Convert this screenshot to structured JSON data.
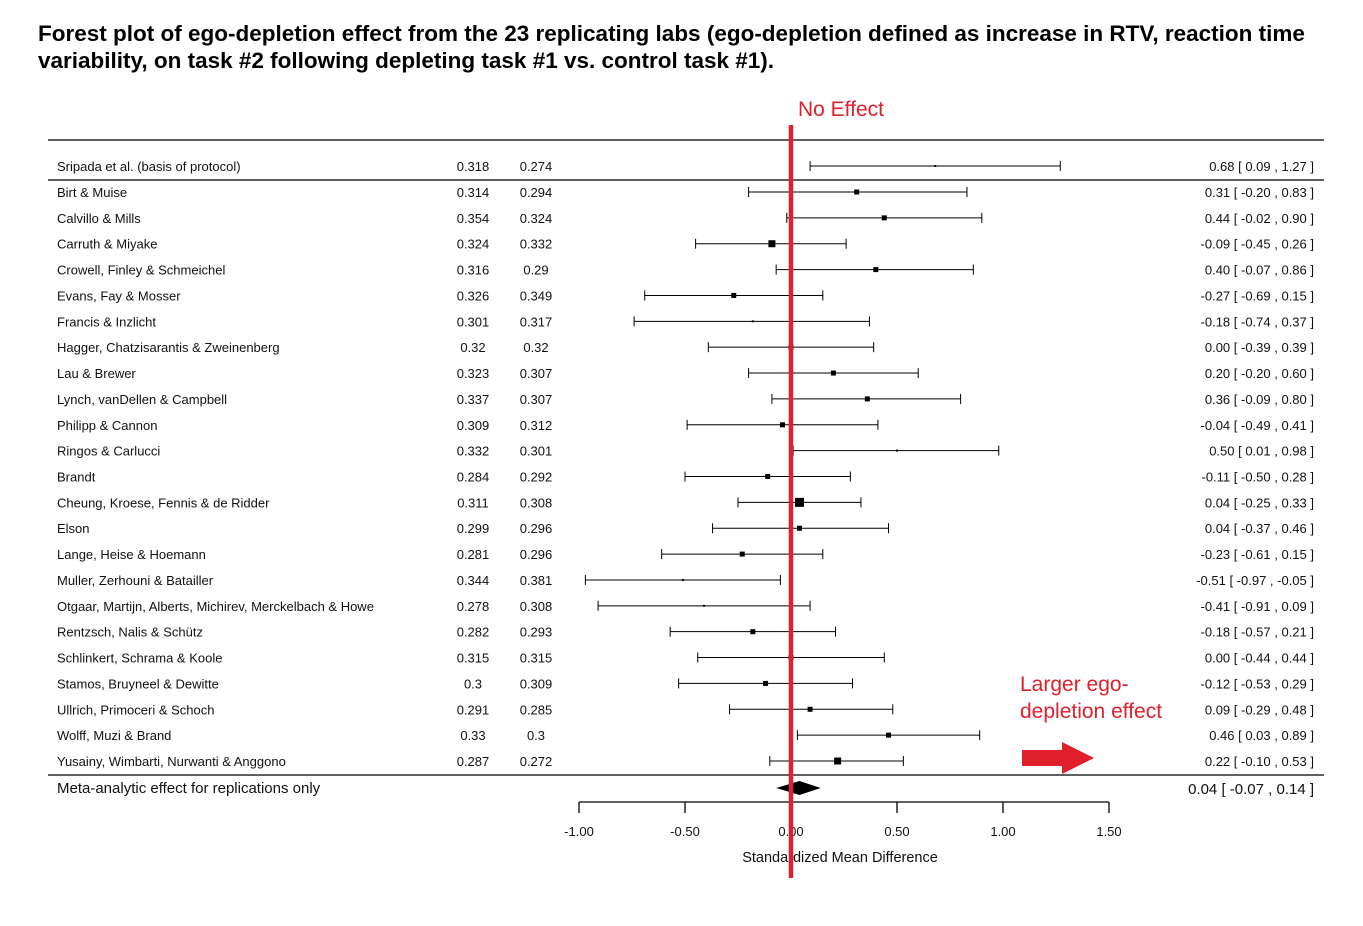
{
  "title_lines": [
    "Forest plot of ego-depletion effect from the 23 replicating labs (ego-depletion defined as increase in RTV, reaction time",
    "variability, on task #2 following depleting task #1 vs. control task #1)."
  ],
  "annotations": {
    "no_effect": "No Effect",
    "larger_effect_lines": [
      "Larger  ego-",
      "depletion effect"
    ]
  },
  "colors": {
    "accent_red": "#e0202a",
    "ink": "#000000"
  },
  "chart_data": {
    "type": "forest",
    "xlabel": "Standardized Mean Difference",
    "xlim": [
      -1.0,
      1.5
    ],
    "xticks": [
      -1.0,
      -0.5,
      0.0,
      0.5,
      1.0,
      1.5
    ],
    "xtick_labels": [
      "-1.00",
      "-0.50",
      "0.00",
      "0.50",
      "1.00",
      "1.50"
    ],
    "reference_line": 0.0,
    "original_study": {
      "label": "Sripada et al. (basis of protocol)",
      "col1": "0.318",
      "col2": "0.274",
      "est": 0.68,
      "lo": 0.09,
      "hi": 1.27,
      "ci_text": "0.68 [ 0.09 , 1.27 ]"
    },
    "studies": [
      {
        "label": "Birt & Muise",
        "col1": "0.314",
        "col2": "0.294",
        "est": 0.31,
        "lo": -0.2,
        "hi": 0.83,
        "ci_text": "0.31 [ -0.20 , 0.83 ]",
        "w": 1
      },
      {
        "label": "Calvillo & Mills",
        "col1": "0.354",
        "col2": "0.324",
        "est": 0.44,
        "lo": -0.02,
        "hi": 0.9,
        "ci_text": "0.44 [ -0.02 , 0.90 ]",
        "w": 1
      },
      {
        "label": "Carruth & Miyake",
        "col1": "0.324",
        "col2": "0.332",
        "est": -0.09,
        "lo": -0.45,
        "hi": 0.26,
        "ci_text": "-0.09 [ -0.45 , 0.26 ]",
        "w": 2
      },
      {
        "label": "Crowell, Finley & Schmeichel",
        "col1": "0.316",
        "col2": "0.29",
        "est": 0.4,
        "lo": -0.07,
        "hi": 0.86,
        "ci_text": "0.40 [ -0.07 , 0.86 ]",
        "w": 1
      },
      {
        "label": "Evans, Fay & Mosser",
        "col1": "0.326",
        "col2": "0.349",
        "est": -0.27,
        "lo": -0.69,
        "hi": 0.15,
        "ci_text": "-0.27 [ -0.69 , 0.15 ]",
        "w": 1
      },
      {
        "label": "Francis & Inzlicht",
        "col1": "0.301",
        "col2": "0.317",
        "est": -0.18,
        "lo": -0.74,
        "hi": 0.37,
        "ci_text": "-0.18 [ -0.74 , 0.37 ]",
        "w": 0
      },
      {
        "label": "Hagger, Chatzisarantis & Zweinenberg",
        "col1": "0.32",
        "col2": "0.32",
        "est": 0.0,
        "lo": -0.39,
        "hi": 0.39,
        "ci_text": "0.00 [ -0.39 , 0.39 ]",
        "w": 1
      },
      {
        "label": "Lau & Brewer",
        "col1": "0.323",
        "col2": "0.307",
        "est": 0.2,
        "lo": -0.2,
        "hi": 0.6,
        "ci_text": "0.20 [ -0.20 , 0.60 ]",
        "w": 1
      },
      {
        "label": "Lynch, vanDellen & Campbell",
        "col1": "0.337",
        "col2": "0.307",
        "est": 0.36,
        "lo": -0.09,
        "hi": 0.8,
        "ci_text": "0.36 [ -0.09 , 0.80 ]",
        "w": 1
      },
      {
        "label": "Philipp & Cannon",
        "col1": "0.309",
        "col2": "0.312",
        "est": -0.04,
        "lo": -0.49,
        "hi": 0.41,
        "ci_text": "-0.04 [ -0.49 , 0.41 ]",
        "w": 1
      },
      {
        "label": "Ringos & Carlucci",
        "col1": "0.332",
        "col2": "0.301",
        "est": 0.5,
        "lo": 0.01,
        "hi": 0.98,
        "ci_text": "0.50 [ 0.01 , 0.98 ]",
        "w": 0
      },
      {
        "label": "Brandt",
        "col1": "0.284",
        "col2": "0.292",
        "est": -0.11,
        "lo": -0.5,
        "hi": 0.28,
        "ci_text": "-0.11 [ -0.50 , 0.28 ]",
        "w": 1
      },
      {
        "label": "Cheung, Kroese, Fennis & de Ridder",
        "col1": "0.311",
        "col2": "0.308",
        "est": 0.04,
        "lo": -0.25,
        "hi": 0.33,
        "ci_text": "0.04 [ -0.25 , 0.33 ]",
        "w": 3
      },
      {
        "label": "Elson",
        "col1": "0.299",
        "col2": "0.296",
        "est": 0.04,
        "lo": -0.37,
        "hi": 0.46,
        "ci_text": "0.04 [ -0.37 , 0.46 ]",
        "w": 1
      },
      {
        "label": "Lange, Heise & Hoemann",
        "col1": "0.281",
        "col2": "0.296",
        "est": -0.23,
        "lo": -0.61,
        "hi": 0.15,
        "ci_text": "-0.23 [ -0.61 , 0.15 ]",
        "w": 1
      },
      {
        "label": "Muller, Zerhouni & Batailler",
        "col1": "0.344",
        "col2": "0.381",
        "est": -0.51,
        "lo": -0.97,
        "hi": -0.05,
        "ci_text": "-0.51 [ -0.97 , -0.05 ]",
        "w": 0
      },
      {
        "label": "Otgaar, Martijn, Alberts, Michirev, Merckelbach & Howe",
        "col1": "0.278",
        "col2": "0.308",
        "est": -0.41,
        "lo": -0.91,
        "hi": 0.09,
        "ci_text": "-0.41 [ -0.91 , 0.09 ]",
        "w": 0
      },
      {
        "label": "Rentzsch, Nalis & Schütz",
        "col1": "0.282",
        "col2": "0.293",
        "est": -0.18,
        "lo": -0.57,
        "hi": 0.21,
        "ci_text": "-0.18 [ -0.57 , 0.21 ]",
        "w": 1
      },
      {
        "label": "Schlinkert, Schrama & Koole",
        "col1": "0.315",
        "col2": "0.315",
        "est": 0.0,
        "lo": -0.44,
        "hi": 0.44,
        "ci_text": "0.00 [ -0.44 , 0.44 ]",
        "w": 1
      },
      {
        "label": "Stamos, Bruyneel & Dewitte",
        "col1": "0.3",
        "col2": "0.309",
        "est": -0.12,
        "lo": -0.53,
        "hi": 0.29,
        "ci_text": "-0.12 [ -0.53 , 0.29 ]",
        "w": 1
      },
      {
        "label": "Ullrich, Primoceri & Schoch",
        "col1": "0.291",
        "col2": "0.285",
        "est": 0.09,
        "lo": -0.29,
        "hi": 0.48,
        "ci_text": "0.09 [ -0.29 , 0.48 ]",
        "w": 1
      },
      {
        "label": "Wolff, Muzi & Brand",
        "col1": "0.33",
        "col2": "0.3",
        "est": 0.46,
        "lo": 0.03,
        "hi": 0.89,
        "ci_text": "0.46 [ 0.03 , 0.89 ]",
        "w": 1
      },
      {
        "label": "Yusainy, Wimbarti, Nurwanti & Anggono",
        "col1": "0.287",
        "col2": "0.272",
        "est": 0.22,
        "lo": -0.1,
        "hi": 0.53,
        "ci_text": "0.22 [ -0.10 , 0.53 ]",
        "w": 2
      }
    ],
    "summary": {
      "label": "Meta-analytic effect for replications only",
      "est": 0.04,
      "lo": -0.07,
      "hi": 0.14,
      "ci_text": "0.04 [ -0.07 , 0.14 ]"
    }
  }
}
